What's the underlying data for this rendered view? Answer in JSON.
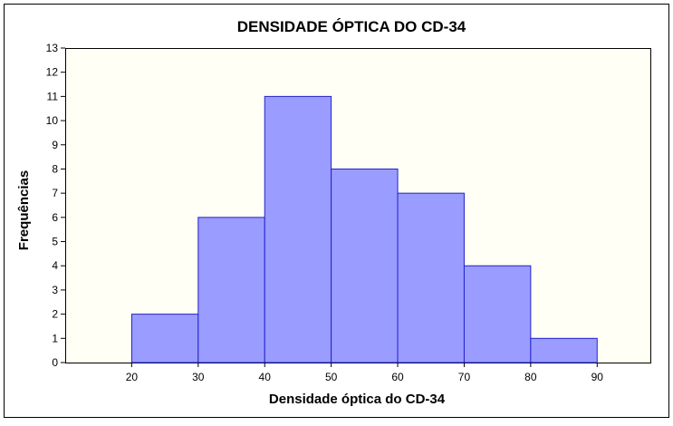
{
  "chart_data": {
    "type": "bar",
    "title": "DENSIDADE ÓPTICA DO CD-34",
    "xlabel": "Densidade óptica do CD-34",
    "ylabel": "Frequências",
    "bins": [
      {
        "from": 20,
        "to": 30,
        "value": 2
      },
      {
        "from": 30,
        "to": 40,
        "value": 6
      },
      {
        "from": 40,
        "to": 50,
        "value": 11
      },
      {
        "from": 50,
        "to": 60,
        "value": 8
      },
      {
        "from": 60,
        "to": 70,
        "value": 7
      },
      {
        "from": 70,
        "to": 80,
        "value": 4
      },
      {
        "from": 80,
        "to": 90,
        "value": 1
      }
    ],
    "x_ticks": [
      20,
      30,
      40,
      50,
      60,
      70,
      80,
      90
    ],
    "y_ticks": [
      0,
      1,
      2,
      3,
      4,
      5,
      6,
      7,
      8,
      9,
      10,
      11,
      12,
      13
    ],
    "xlim": [
      10,
      98
    ],
    "ylim": [
      0,
      13
    ],
    "grid": false,
    "legend": "none",
    "colors": {
      "bar_fill": "#9a9cff",
      "bar_stroke": "#2222cc",
      "plot_background": "#fffff6",
      "frame": "#000000"
    }
  }
}
